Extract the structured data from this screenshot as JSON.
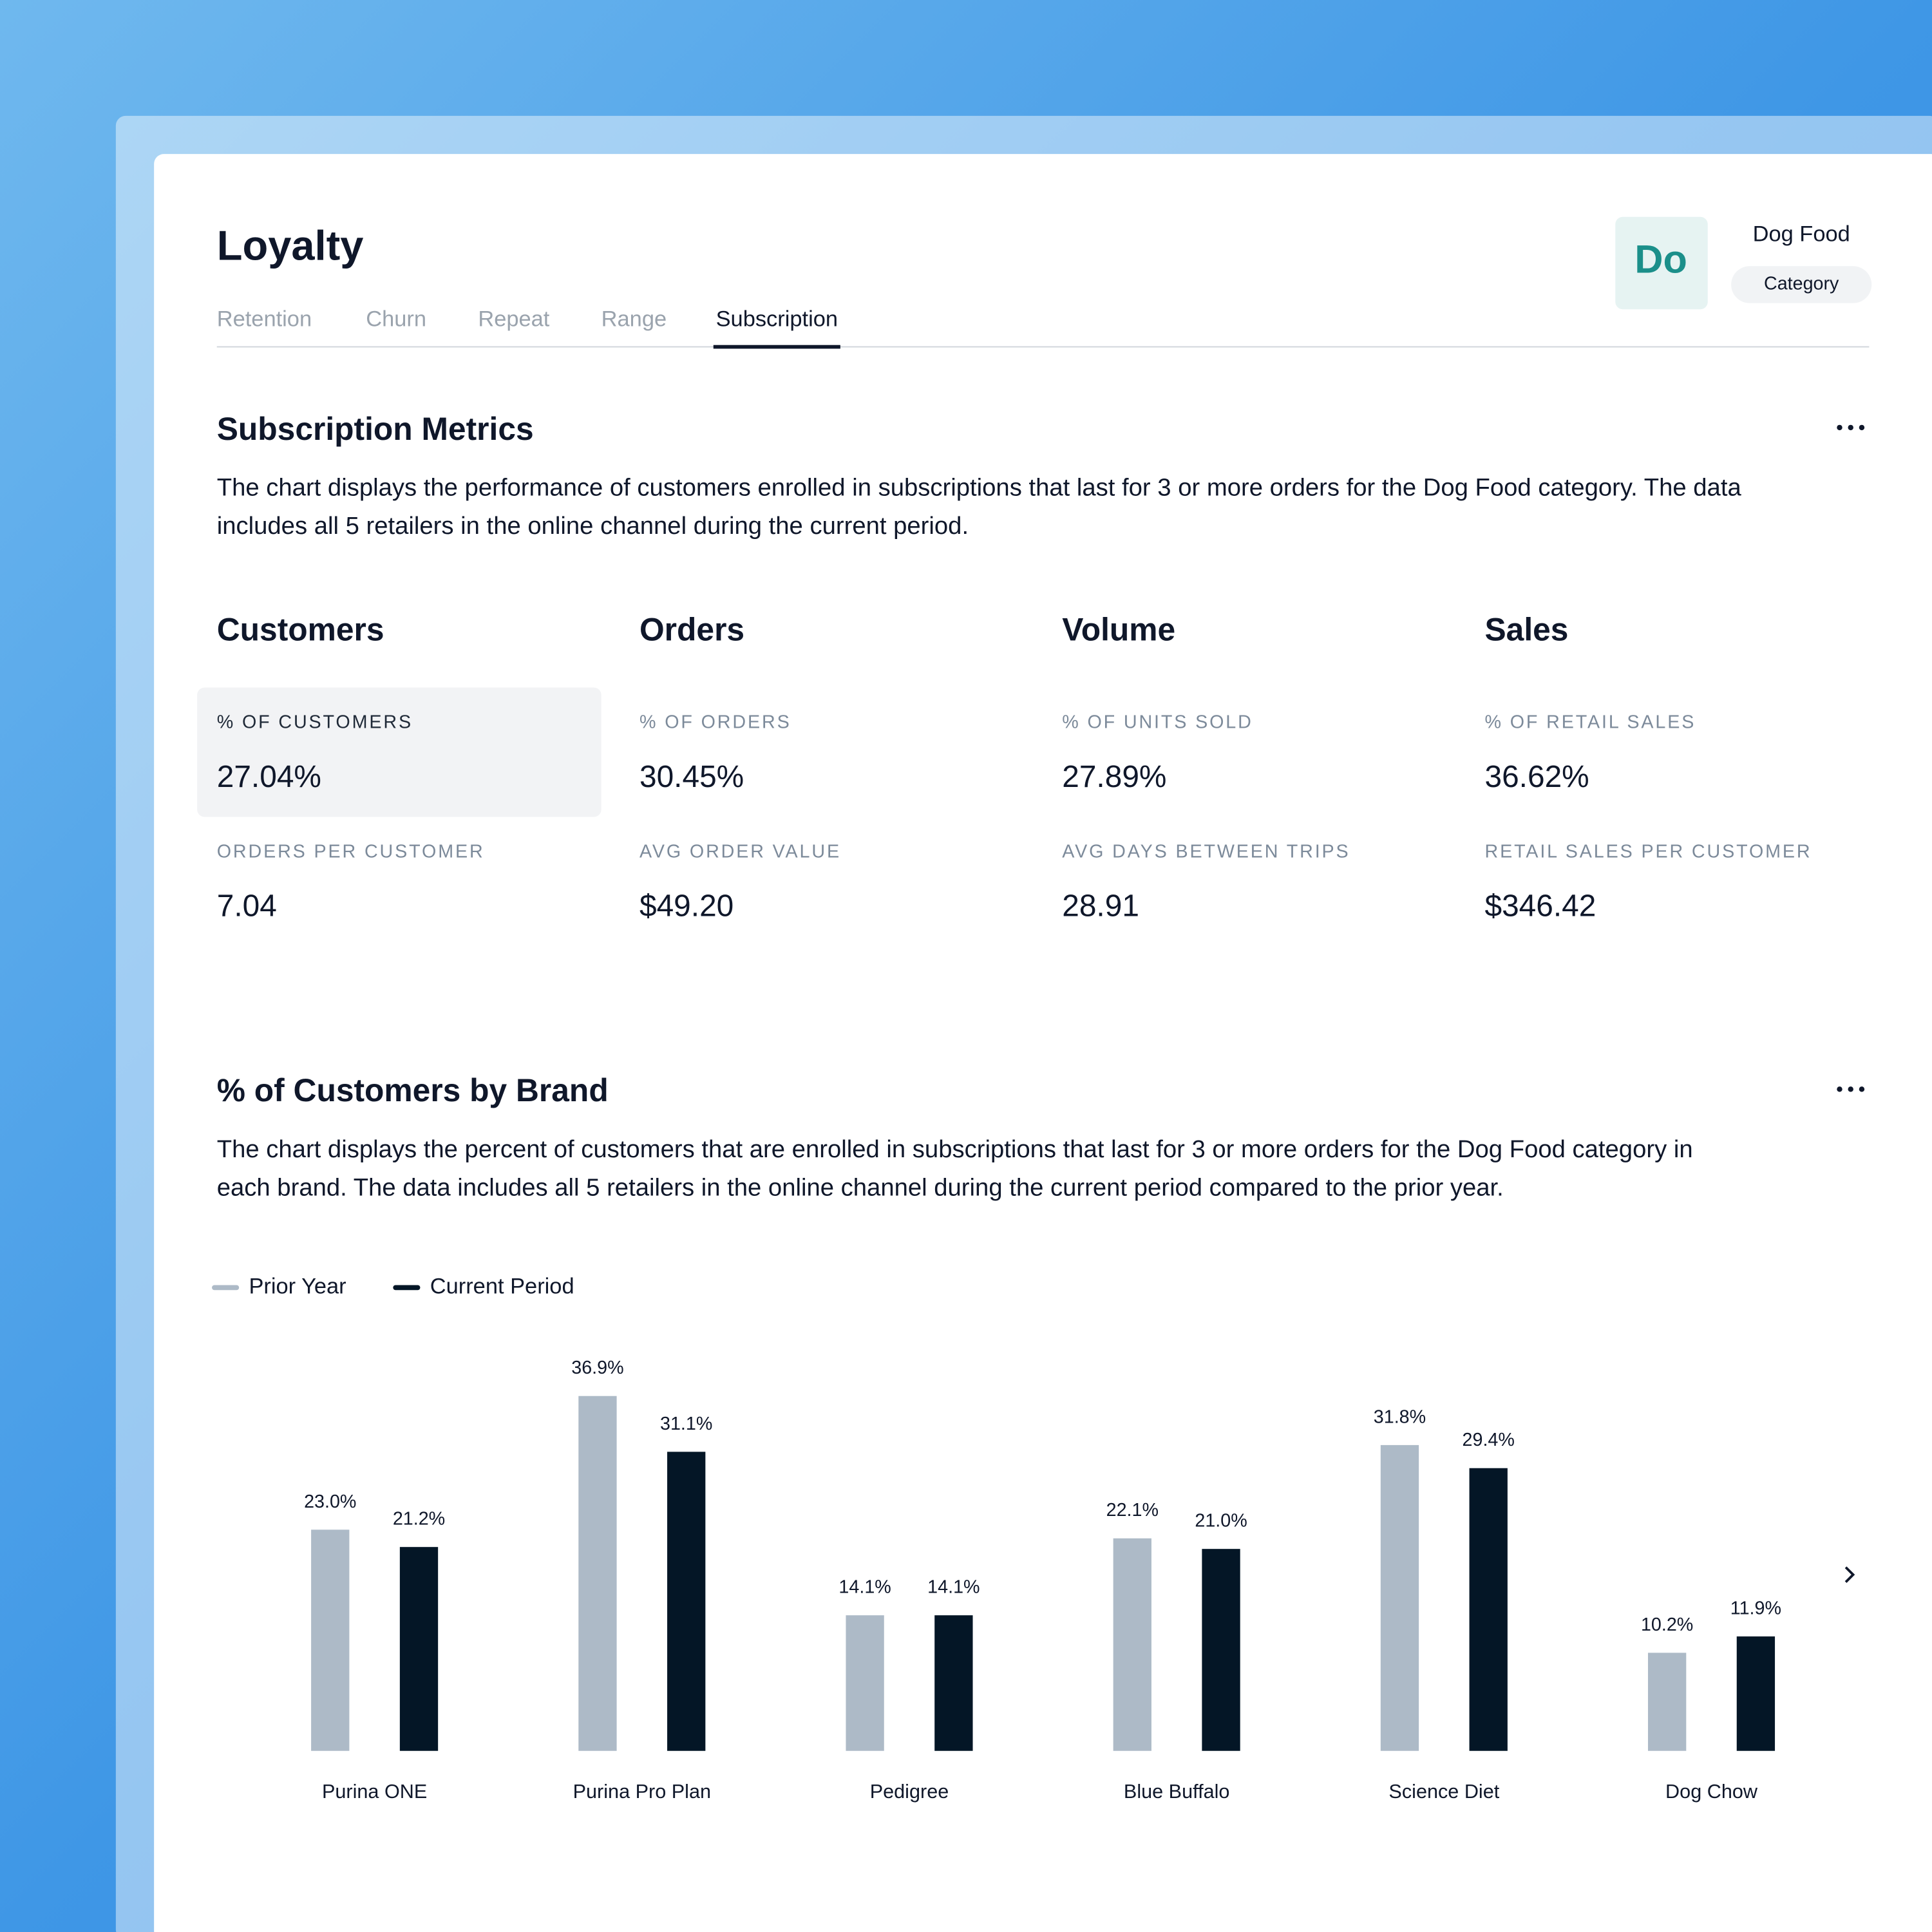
{
  "header": {
    "title": "Loyalty",
    "badge": "Do",
    "category_name": "Dog Food",
    "category_tag": "Category"
  },
  "tabs": [
    "Retention",
    "Churn",
    "Repeat",
    "Range",
    "Subscription"
  ],
  "active_tab": 4,
  "metrics_section": {
    "title": "Subscription Metrics",
    "description_lines": [
      "The chart displays the performance of customers enrolled in subscriptions that last for 3 or more orders for the Dog Food category. The data",
      "includes all 5 retailers in the online channel during the current period."
    ],
    "columns": [
      {
        "heading": "Customers",
        "items": [
          {
            "label": "% OF CUSTOMERS",
            "value": "27.04%"
          },
          {
            "label": "ORDERS PER CUSTOMER",
            "value": "7.04"
          }
        ]
      },
      {
        "heading": "Orders",
        "items": [
          {
            "label": "% OF ORDERS",
            "value": "30.45%"
          },
          {
            "label": "AVG ORDER VALUE",
            "value": "$49.20"
          }
        ]
      },
      {
        "heading": "Volume",
        "items": [
          {
            "label": "% OF UNITS SOLD",
            "value": "27.89%"
          },
          {
            "label": "AVG DAYS BETWEEN TRIPS",
            "value": "28.91"
          }
        ]
      },
      {
        "heading": "Sales",
        "items": [
          {
            "label": "% OF RETAIL SALES",
            "value": "36.62%"
          },
          {
            "label": "RETAIL SALES PER CUSTOMER",
            "value": "$346.42"
          }
        ]
      }
    ]
  },
  "chart_data": {
    "type": "bar",
    "title": "% of Customers by Brand",
    "description_lines": [
      "The chart displays the percent of customers that are enrolled in subscriptions that last for 3 or more orders for the Dog Food category in",
      "each brand. The data includes all 5 retailers in the online channel during the current period compared to the prior year."
    ],
    "categories": [
      "Purina ONE",
      "Purina Pro Plan",
      "Pedigree",
      "Blue Buffalo",
      "Science Diet",
      "Dog Chow"
    ],
    "series": [
      {
        "name": "Prior Year",
        "color": "#adbac7",
        "values": [
          23.0,
          36.9,
          14.1,
          22.1,
          31.8,
          10.2
        ],
        "value_labels": [
          "23.0%",
          "36.9%",
          "14.1%",
          "22.1%",
          "31.8%",
          "10.2%"
        ]
      },
      {
        "name": "Current Period",
        "color": "#041626",
        "values": [
          21.2,
          31.1,
          14.1,
          21.0,
          29.4,
          11.9
        ],
        "value_labels": [
          "21.2%",
          "31.1%",
          "14.1%",
          "21.0%",
          "29.4%",
          "11.9%"
        ]
      }
    ]
  }
}
